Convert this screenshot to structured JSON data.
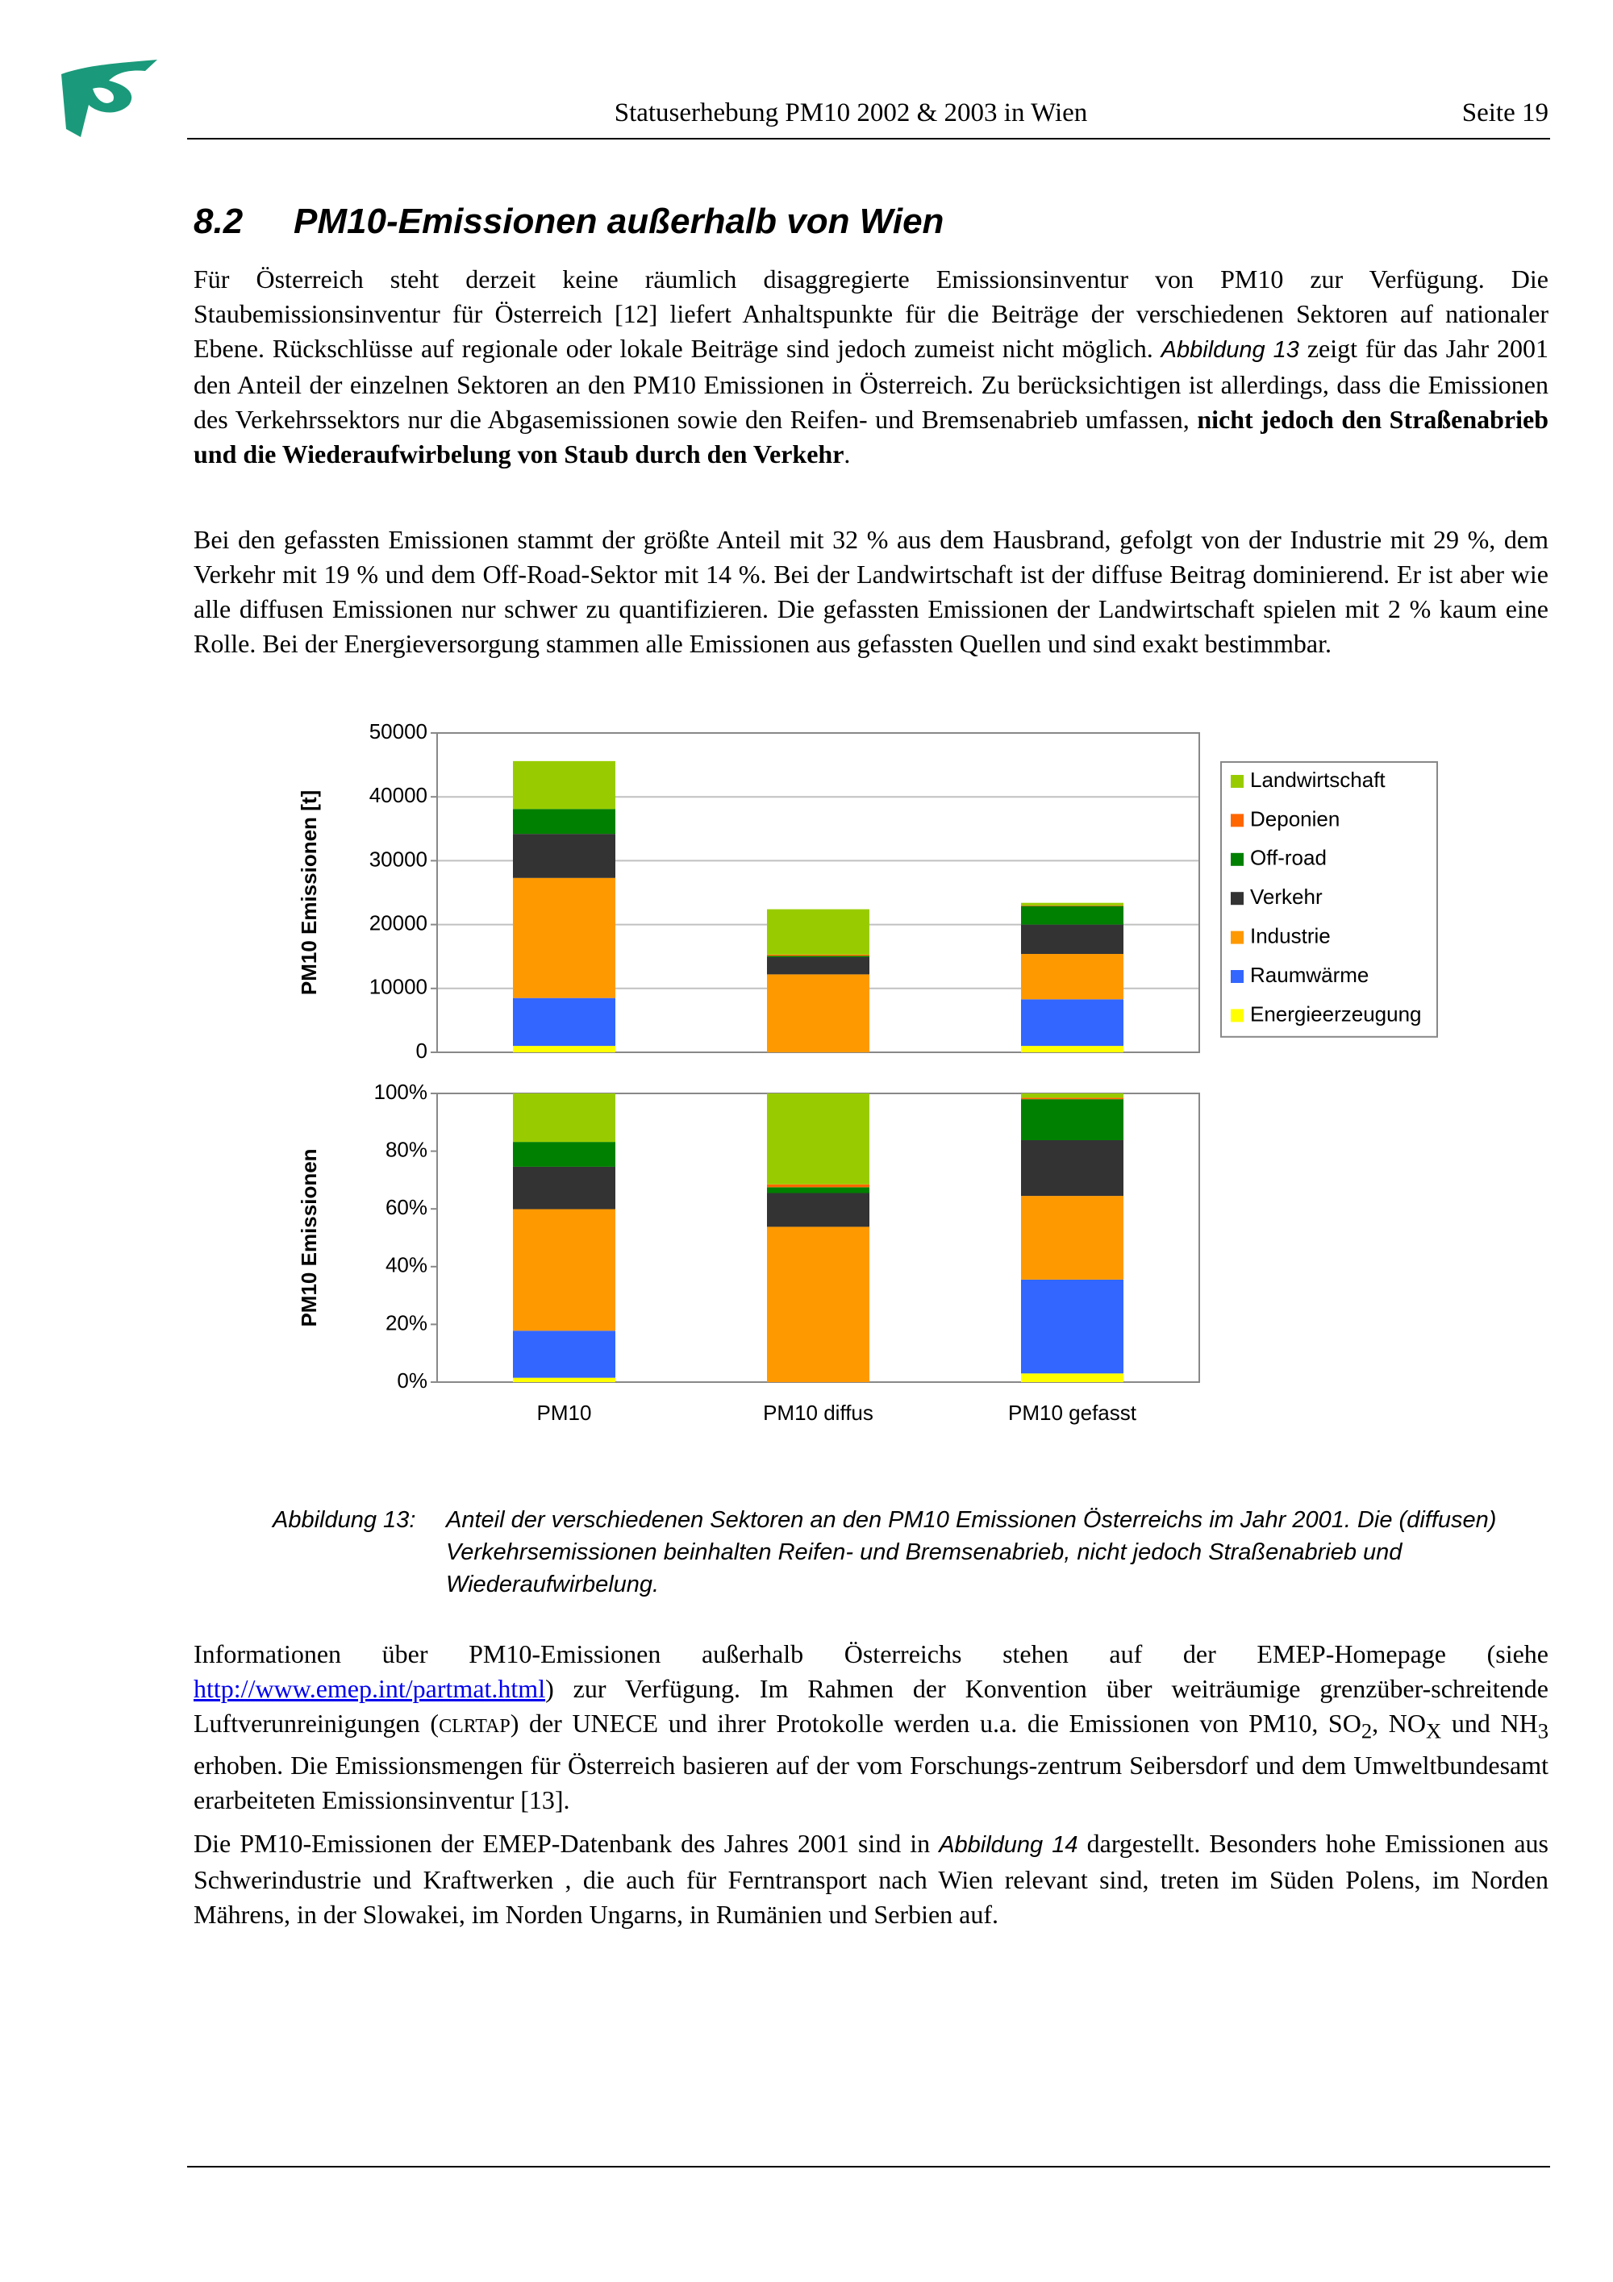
{
  "header": {
    "title": "Statuserhebung PM10 2002 & 2003 in Wien",
    "page": "Seite 19"
  },
  "section": {
    "number": "8.2",
    "title": "PM10-Emissionen außerhalb von Wien"
  },
  "paragraphs": [
    [
      "Für Österreich steht derzeit keine räumlich disaggregierte Emissionsinventur von PM10 zur Verfügung. Die Staubemissionsinventur für Österreich [12] liefert Anhaltspunkte für die Beiträge der verschiedenen Sektoren auf nationaler Ebene. Rückschlüsse auf regionale oder lokale Beiträge sind jedoch zumeist nicht möglich. ",
      "Abbildung 13",
      " zeigt für das Jahr 2001 den Anteil der einzelnen Sektoren an den PM10 Emissionen in Österreich. Zu berücksichtigen ist allerdings, dass die Emissionen des Verkehrssektors nur die Abgasemissionen sowie den Reifen- und Bremsenabrieb umfassen, ",
      "nicht jedoch den Straßenabrieb und die Wiederaufwirbelung von Staub durch den Verkehr",
      "."
    ],
    [
      "Bei den gefassten Emissionen stammt der größte Anteil mit 32 % aus dem Hausbrand, gefolgt von der Industrie mit 29 %, dem Verkehr mit 19 % und dem Off-Road-Sektor mit 14 %. Bei der Landwirtschaft ist der diffuse Beitrag dominierend. Er ist aber wie alle diffusen Emissionen nur schwer zu quantifizieren. Die gefassten Emissionen der Landwirtschaft spielen mit 2 % kaum eine Rolle. Bei der Energieversorgung stammen alle Emissionen aus gefassten Quellen und sind exakt bestimmbar."
    ],
    [
      "Informationen über PM10-Emissionen außerhalb Österreichs stehen auf der EMEP-Homepage (siehe ",
      "http://www.emep.int/partmat.html",
      ") zur Verfügung. Im Rahmen der Konvention über weiträumige grenzüber-schreitende Luftverunreinigungen (",
      "CLRTAP",
      ") der UNECE und ihrer Protokolle werden u.a. die Emissionen von PM10, SO",
      "2",
      ", NO",
      "X",
      " und NH",
      "3",
      " erhoben. Die Emissionsmengen für Österreich basieren auf der vom Forschungs-zentrum Seibersdorf und dem Umweltbundesamt erarbeiteten Emissionsinventur [13]."
    ],
    [
      "Die PM10-Emissionen der EMEP-Datenbank des Jahres 2001 sind in ",
      "Abbildung 14",
      " dargestellt. Besonders hohe Emissionen aus Schwerindustrie und Kraftwerken , die auch für Ferntransport nach Wien relevant sind, treten im Süden Polens, im Norden Mährens, in der Slowakei, im Norden Ungarns, in Rumänien und Serbien auf."
    ]
  ],
  "caption": {
    "label": "Abbildung 13:",
    "text": "Anteil der verschiedenen Sektoren an den PM10 Emissionen Österreichs im Jahr 2001. Die (diffusen) Verkehrsemissionen beinhalten Reifen- und Bremsenabrieb, nicht jedoch Straßenabrieb und Wiederaufwirbelung."
  },
  "chart_data": [
    {
      "type": "bar",
      "stacked": true,
      "y_label": "PM10 Emissionen [t]",
      "ylim": [
        0,
        50000
      ],
      "yticks": [
        0,
        10000,
        20000,
        30000,
        40000,
        50000
      ],
      "grid": true,
      "legend": "right",
      "series": [
        {
          "name": "Energieerzeugung",
          "color": "#ffff00",
          "values": [
            1000,
            0,
            1000
          ]
        },
        {
          "name": "Raumwärme",
          "color": "#3366ff",
          "values": [
            7500,
            0,
            7300
          ]
        },
        {
          "name": "Industrie",
          "color": "#ff9900",
          "values": [
            18800,
            12200,
            7100
          ]
        },
        {
          "name": "Verkehr",
          "color": "#333333",
          "values": [
            6900,
            2700,
            4600
          ]
        },
        {
          "name": "Off-road",
          "color": "#008000",
          "values": [
            3900,
            200,
            2900
          ]
        },
        {
          "name": "Deponien",
          "color": "#ff6600",
          "values": [
            0,
            200,
            100
          ]
        },
        {
          "name": "Landwirtschaft",
          "color": "#99cc00",
          "values": [
            7500,
            7100,
            400
          ]
        }
      ]
    },
    {
      "type": "bar",
      "stacked": true,
      "y_label": "PM10 Emissionen",
      "categories": [
        "PM10",
        "PM10 diffus",
        "PM10 gefasst"
      ],
      "ylim": [
        0,
        100
      ],
      "yticks": [
        {
          "value": 0,
          "label": "0%"
        },
        {
          "value": 20,
          "label": "20%"
        },
        {
          "value": 40,
          "label": "40%"
        },
        {
          "value": 60,
          "label": "60%"
        },
        {
          "value": 80,
          "label": "80%"
        },
        {
          "value": 100,
          "label": "100%"
        }
      ],
      "grid": false,
      "series": [
        {
          "color": "#ffff00",
          "values": [
            1.5,
            0,
            3
          ]
        },
        {
          "color": "#3366ff",
          "values": [
            16.3,
            0,
            32.5
          ]
        },
        {
          "color": "#ff9900",
          "values": [
            42.1,
            53.8,
            29
          ]
        },
        {
          "color": "#333333",
          "values": [
            14.7,
            11.7,
            19.3
          ]
        },
        {
          "color": "#008000",
          "values": [
            8.6,
            2,
            14.2
          ]
        },
        {
          "color": "#ff6600",
          "values": [
            0,
            1,
            0.5
          ]
        },
        {
          "color": "#99cc00",
          "values": [
            16.8,
            31.5,
            1.5
          ]
        }
      ]
    }
  ]
}
